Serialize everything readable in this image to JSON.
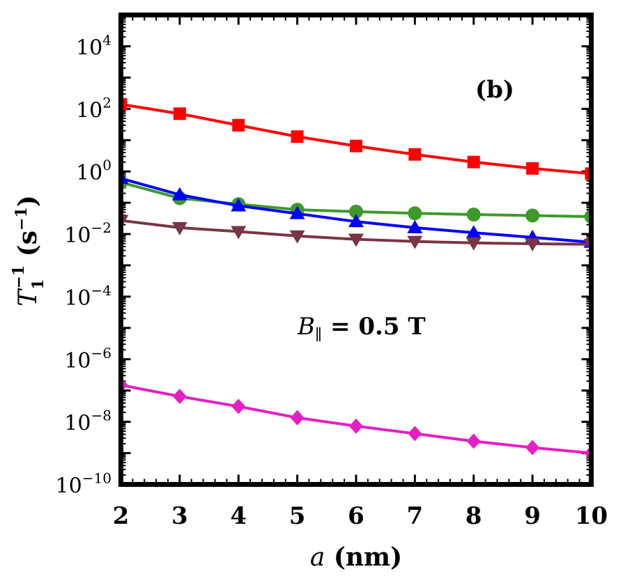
{
  "chart_data": {
    "type": "line",
    "scale_y": "log",
    "xlabel_var": "a",
    "xlabel_unit": "(nm)",
    "ylabel_var": "T",
    "ylabel_sub": "1",
    "ylabel_sup": "−1",
    "ylabel_unit": "(s",
    "ylabel_unit_sup": "−1",
    "ylabel_close": ")",
    "panel_label": "(b)",
    "annotation": {
      "var": "B",
      "sub": "∥",
      "text": " = 0.5 T"
    },
    "xlim": [
      2,
      10
    ],
    "ylim": [
      1e-10,
      100000.0
    ],
    "x_ticks": [
      "2",
      "3",
      "4",
      "5",
      "6",
      "7",
      "8",
      "9",
      "10"
    ],
    "y_ticks": [
      {
        "base": "10",
        "exp": "4",
        "value": 10000.0
      },
      {
        "base": "10",
        "exp": "2",
        "value": 100.0
      },
      {
        "base": "10",
        "exp": "0",
        "value": 1
      },
      {
        "base": "10",
        "exp": "−2",
        "value": 0.01
      },
      {
        "base": "10",
        "exp": "−4",
        "value": 0.0001
      },
      {
        "base": "10",
        "exp": "−6",
        "value": 1e-06
      },
      {
        "base": "10",
        "exp": "−8",
        "value": 1e-08
      },
      {
        "base": "10",
        "exp": "−10",
        "value": 1e-10
      }
    ],
    "x": [
      2,
      3,
      4,
      5,
      6,
      7,
      8,
      9,
      10
    ],
    "series": [
      {
        "marker": "square",
        "color": "#ff0000",
        "values": [
          140,
          70,
          30,
          13,
          6.5,
          3.5,
          2.0,
          1.25,
          0.85
        ]
      },
      {
        "marker": "circle",
        "color": "#3d9a2a",
        "values": [
          0.45,
          0.14,
          0.09,
          0.06,
          0.052,
          0.046,
          0.042,
          0.039,
          0.036
        ]
      },
      {
        "marker": "triangle-up",
        "color": "#0000ff",
        "values": [
          0.6,
          0.18,
          0.08,
          0.045,
          0.025,
          0.016,
          0.011,
          0.0078,
          0.0055
        ]
      },
      {
        "marker": "triangle-down",
        "color": "#7a3545",
        "values": [
          0.027,
          0.016,
          0.012,
          0.0087,
          0.0068,
          0.0058,
          0.0052,
          0.0049,
          0.0047
        ]
      },
      {
        "marker": "diamond",
        "color": "#e61ec4",
        "values": [
          1.5e-07,
          6.5e-08,
          3.1e-08,
          1.35e-08,
          7.3e-09,
          4.2e-09,
          2.4e-09,
          1.5e-09,
          1e-09
        ]
      }
    ]
  }
}
